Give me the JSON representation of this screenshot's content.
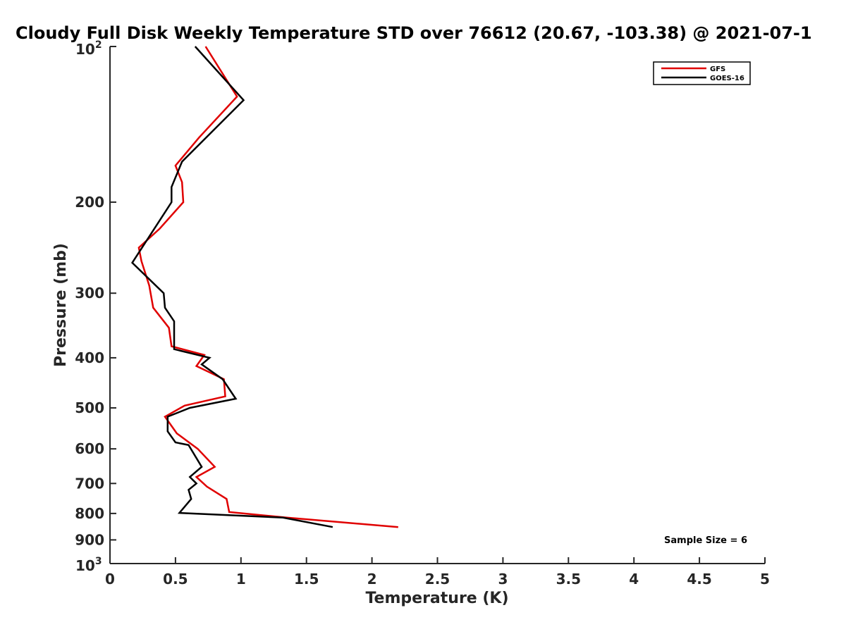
{
  "chart_data": {
    "type": "line",
    "title": "Cloudy Full Disk Weekly Temperature STD over 76612 (20.67, -103.38) @ 2021-07-1",
    "xlabel": "Temperature (K)",
    "ylabel": "Pressure (mb)",
    "xlim": [
      0,
      5
    ],
    "ylim": [
      1000,
      100
    ],
    "yscale": "log",
    "x_ticks": [
      "0",
      "0.5",
      "1",
      "1.5",
      "2",
      "2.5",
      "3",
      "3.5",
      "4",
      "4.5",
      "5"
    ],
    "x_tick_values": [
      0,
      0.5,
      1,
      1.5,
      2,
      2.5,
      3,
      3.5,
      4,
      4.5,
      5
    ],
    "y_ticks_top": {
      "base": "10",
      "exp": "2"
    },
    "y_ticks_bottom": {
      "base": "10",
      "exp": "3"
    },
    "y_ticks": [
      "200",
      "300",
      "400",
      "500",
      "600",
      "700",
      "800",
      "900"
    ],
    "y_tick_values": [
      200,
      300,
      400,
      500,
      600,
      700,
      800,
      900
    ],
    "legend_position": "top-right",
    "grid": false,
    "annotation": "Sample Size = 6",
    "series": [
      {
        "name": "GFS",
        "color": "#e00000",
        "points": [
          [
            0.73,
            100
          ],
          [
            0.97,
            125
          ],
          [
            0.68,
            150
          ],
          [
            0.5,
            170
          ],
          [
            0.55,
            183
          ],
          [
            0.56,
            200
          ],
          [
            0.38,
            225
          ],
          [
            0.22,
            245
          ],
          [
            0.24,
            260
          ],
          [
            0.3,
            290
          ],
          [
            0.33,
            320
          ],
          [
            0.45,
            350
          ],
          [
            0.47,
            380
          ],
          [
            0.72,
            395
          ],
          [
            0.66,
            415
          ],
          [
            0.87,
            440
          ],
          [
            0.88,
            475
          ],
          [
            0.57,
            495
          ],
          [
            0.42,
            520
          ],
          [
            0.51,
            560
          ],
          [
            0.67,
            600
          ],
          [
            0.8,
            650
          ],
          [
            0.66,
            680
          ],
          [
            0.74,
            710
          ],
          [
            0.89,
            750
          ],
          [
            0.91,
            795
          ],
          [
            1.35,
            815
          ],
          [
            2.2,
            850
          ]
        ]
      },
      {
        "name": "GOES-16",
        "color": "#000000",
        "points": [
          [
            0.65,
            100
          ],
          [
            1.02,
            127
          ],
          [
            0.55,
            167
          ],
          [
            0.47,
            187
          ],
          [
            0.47,
            200
          ],
          [
            0.17,
            262
          ],
          [
            0.41,
            300
          ],
          [
            0.42,
            320
          ],
          [
            0.49,
            340
          ],
          [
            0.49,
            385
          ],
          [
            0.76,
            400
          ],
          [
            0.7,
            412
          ],
          [
            0.86,
            440
          ],
          [
            0.96,
            480
          ],
          [
            0.61,
            500
          ],
          [
            0.44,
            520
          ],
          [
            0.44,
            555
          ],
          [
            0.5,
            583
          ],
          [
            0.6,
            590
          ],
          [
            0.7,
            650
          ],
          [
            0.61,
            680
          ],
          [
            0.66,
            700
          ],
          [
            0.6,
            720
          ],
          [
            0.62,
            750
          ],
          [
            0.53,
            798
          ],
          [
            1.32,
            815
          ],
          [
            1.7,
            850
          ]
        ]
      }
    ]
  }
}
